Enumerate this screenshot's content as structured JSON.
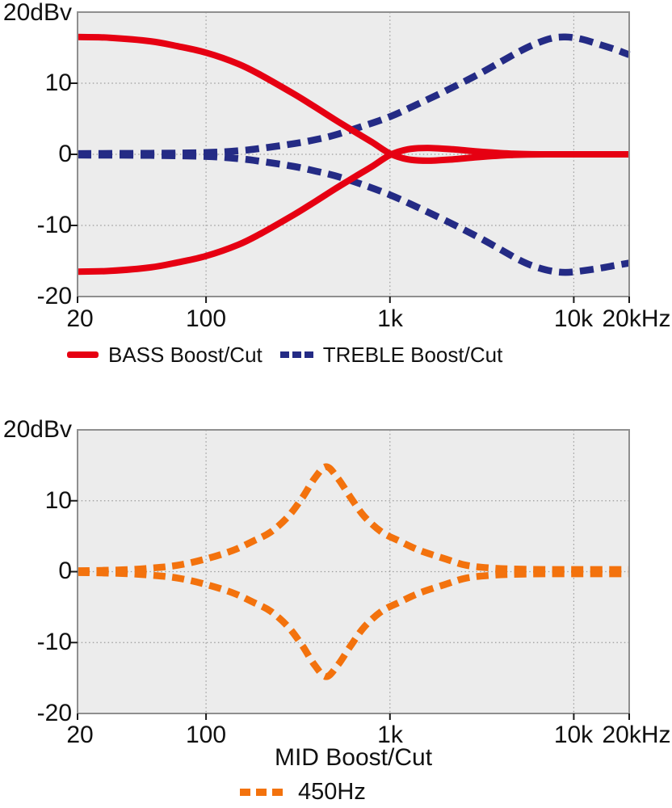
{
  "chart_data": [
    {
      "type": "line",
      "x_scale": "log",
      "xlim": [
        20,
        20000
      ],
      "ylim": [
        -20,
        20
      ],
      "xlabel": "",
      "ylabel": "dBv",
      "y_axis_top_label": "20dBv",
      "y_tick_labels": [
        "10",
        "0",
        "-10",
        "-20"
      ],
      "y_tick_values": [
        10,
        0,
        -10,
        -20
      ],
      "x_tick_labels": [
        "20",
        "100",
        "1k",
        "10k",
        "20kHz"
      ],
      "x_tick_values": [
        20,
        100,
        1000,
        10000,
        20000
      ],
      "grid": true,
      "plot_bg": "#ececec",
      "legend_position": "bottom",
      "legend": [
        {
          "label": "BASS Boost/Cut",
          "color": "#e60012",
          "style": "solid"
        },
        {
          "label": "TREBLE Boost/Cut",
          "color": "#242b85",
          "style": "dashed"
        }
      ],
      "series": [
        {
          "name": "TREBLE Boost",
          "color": "#242b85",
          "style": "dashed",
          "points": [
            [
              20,
              0.1
            ],
            [
              50,
              0.15
            ],
            [
              100,
              0.25
            ],
            [
              150,
              0.5
            ],
            [
              200,
              0.85
            ],
            [
              300,
              1.5
            ],
            [
              400,
              2.1
            ],
            [
              500,
              2.7
            ],
            [
              700,
              3.9
            ],
            [
              1000,
              5.3
            ],
            [
              1400,
              7.0
            ],
            [
              2000,
              8.9
            ],
            [
              3000,
              11.2
            ],
            [
              4000,
              13.0
            ],
            [
              5000,
              14.4
            ],
            [
              6000,
              15.4
            ],
            [
              7500,
              16.3
            ],
            [
              9000,
              16.5
            ],
            [
              11000,
              16.2
            ],
            [
              14000,
              15.4
            ],
            [
              17000,
              14.7
            ],
            [
              20000,
              14.0
            ]
          ]
        },
        {
          "name": "TREBLE Cut",
          "color": "#242b85",
          "style": "dashed",
          "points": [
            [
              20,
              -0.1
            ],
            [
              50,
              -0.15
            ],
            [
              100,
              -0.3
            ],
            [
              150,
              -0.6
            ],
            [
              200,
              -1.0
            ],
            [
              300,
              -1.7
            ],
            [
              400,
              -2.4
            ],
            [
              500,
              -3.0
            ],
            [
              700,
              -4.2
            ],
            [
              1000,
              -5.7
            ],
            [
              1400,
              -7.4
            ],
            [
              2000,
              -9.3
            ],
            [
              3000,
              -11.6
            ],
            [
              4000,
              -13.4
            ],
            [
              5000,
              -14.8
            ],
            [
              6000,
              -15.7
            ],
            [
              7500,
              -16.4
            ],
            [
              9000,
              -16.6
            ],
            [
              11000,
              -16.4
            ],
            [
              14000,
              -16.0
            ],
            [
              17000,
              -15.6
            ],
            [
              20000,
              -15.3
            ]
          ]
        },
        {
          "name": "BASS Boost",
          "color": "#e60012",
          "style": "solid",
          "points": [
            [
              20,
              16.5
            ],
            [
              30,
              16.4
            ],
            [
              50,
              15.9
            ],
            [
              70,
              15.2
            ],
            [
              100,
              14.3
            ],
            [
              150,
              12.7
            ],
            [
              200,
              11.1
            ],
            [
              300,
              8.5
            ],
            [
              400,
              6.5
            ],
            [
              500,
              4.9
            ],
            [
              650,
              3.1
            ],
            [
              800,
              1.7
            ],
            [
              1000,
              0.1
            ],
            [
              1250,
              -0.7
            ],
            [
              1600,
              -0.9
            ],
            [
              2200,
              -0.7
            ],
            [
              3000,
              -0.4
            ],
            [
              4500,
              -0.1
            ],
            [
              7000,
              0
            ],
            [
              12000,
              0
            ],
            [
              20000,
              0
            ]
          ]
        },
        {
          "name": "BASS Cut",
          "color": "#e60012",
          "style": "solid",
          "points": [
            [
              20,
              -16.5
            ],
            [
              30,
              -16.4
            ],
            [
              50,
              -15.9
            ],
            [
              70,
              -15.2
            ],
            [
              100,
              -14.3
            ],
            [
              150,
              -12.7
            ],
            [
              200,
              -11.1
            ],
            [
              300,
              -8.5
            ],
            [
              400,
              -6.5
            ],
            [
              500,
              -4.9
            ],
            [
              650,
              -3.1
            ],
            [
              800,
              -1.7
            ],
            [
              1000,
              -0.1
            ],
            [
              1250,
              0.7
            ],
            [
              1600,
              0.9
            ],
            [
              2200,
              0.7
            ],
            [
              3000,
              0.4
            ],
            [
              4500,
              0.1
            ],
            [
              7000,
              0
            ],
            [
              12000,
              0
            ],
            [
              20000,
              0
            ]
          ]
        }
      ]
    },
    {
      "type": "line",
      "x_scale": "log",
      "xlim": [
        20,
        20000
      ],
      "ylim": [
        -20,
        20
      ],
      "xlabel": "MID Boost/Cut",
      "ylabel": "dBv",
      "y_axis_top_label": "20dBv",
      "y_tick_labels": [
        "10",
        "0",
        "-10",
        "-20"
      ],
      "y_tick_values": [
        10,
        0,
        -10,
        -20
      ],
      "x_tick_labels": [
        "20",
        "100",
        "1k",
        "10k",
        "20kHz"
      ],
      "x_tick_values": [
        20,
        100,
        1000,
        10000,
        20000
      ],
      "grid": true,
      "plot_bg": "#ececec",
      "legend_position": "bottom",
      "legend": [
        {
          "label": "450Hz",
          "color": "#f3720d",
          "style": "dashed"
        }
      ],
      "series": [
        {
          "name": "MID Boost (450Hz)",
          "color": "#f3720d",
          "style": "dashed",
          "points": [
            [
              20,
              0.12
            ],
            [
              35,
              0.25
            ],
            [
              50,
              0.5
            ],
            [
              70,
              0.9
            ],
            [
              100,
              1.8
            ],
            [
              140,
              3.0
            ],
            [
              180,
              4.3
            ],
            [
              225,
              5.6
            ],
            [
              280,
              7.8
            ],
            [
              335,
              10.5
            ],
            [
              390,
              13.2
            ],
            [
              450,
              14.8
            ],
            [
              520,
              13.2
            ],
            [
              610,
              10.5
            ],
            [
              725,
              7.8
            ],
            [
              900,
              5.6
            ],
            [
              1130,
              4.3
            ],
            [
              1450,
              3.0
            ],
            [
              2000,
              1.8
            ],
            [
              2600,
              0.9
            ],
            [
              3600,
              0.5
            ],
            [
              5000,
              0.35
            ],
            [
              8000,
              0.3
            ],
            [
              20000,
              0.3
            ]
          ]
        },
        {
          "name": "MID Cut (450Hz)",
          "color": "#f3720d",
          "style": "dashed",
          "points": [
            [
              20,
              -0.12
            ],
            [
              35,
              -0.25
            ],
            [
              50,
              -0.5
            ],
            [
              70,
              -0.9
            ],
            [
              100,
              -1.8
            ],
            [
              140,
              -3.0
            ],
            [
              180,
              -4.3
            ],
            [
              225,
              -5.6
            ],
            [
              280,
              -7.8
            ],
            [
              335,
              -10.5
            ],
            [
              390,
              -13.2
            ],
            [
              450,
              -14.8
            ],
            [
              520,
              -13.2
            ],
            [
              610,
              -10.5
            ],
            [
              725,
              -7.8
            ],
            [
              900,
              -5.6
            ],
            [
              1130,
              -4.3
            ],
            [
              1450,
              -3.0
            ],
            [
              2000,
              -1.8
            ],
            [
              2600,
              -0.9
            ],
            [
              3600,
              -0.5
            ],
            [
              5000,
              -0.35
            ],
            [
              8000,
              -0.3
            ],
            [
              20000,
              -0.3
            ]
          ]
        }
      ]
    }
  ]
}
